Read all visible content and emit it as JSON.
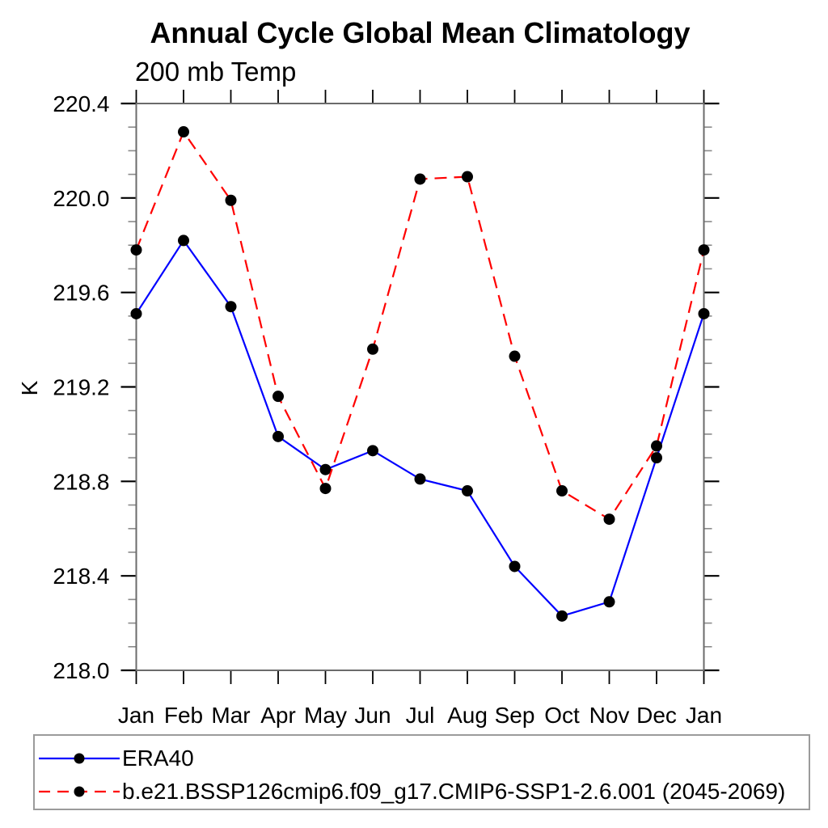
{
  "page": {
    "background": "#ffffff"
  },
  "chart_data": {
    "type": "line",
    "title": "Annual Cycle Global Mean Climatology",
    "subtitle": "200 mb Temp",
    "ylabel": "K",
    "xlabel": "",
    "categories": [
      "Jan",
      "Feb",
      "Mar",
      "Apr",
      "May",
      "Jun",
      "Jul",
      "Aug",
      "Sep",
      "Oct",
      "Nov",
      "Dec",
      "Jan"
    ],
    "ylim": [
      218.0,
      220.4
    ],
    "ytick_step": 0.4,
    "ytick_minor_step": 0.1,
    "ytick_labels": [
      "218.0",
      "218.4",
      "218.8",
      "219.2",
      "219.6",
      "220.0",
      "220.4"
    ],
    "grid": false,
    "legend_position": "bottom-left-box",
    "axis_color": "#6b6b6b",
    "tick_color": "#000000",
    "series": [
      {
        "name": "ERA40",
        "color": "#0000ff",
        "line_style": "solid",
        "marker": "filled-circle",
        "marker_color": "#000000",
        "values": [
          219.51,
          219.82,
          219.54,
          218.99,
          218.85,
          218.93,
          218.81,
          218.76,
          218.44,
          218.23,
          218.29,
          218.9,
          219.51
        ]
      },
      {
        "name": "b.e21.BSSP126cmip6.f09_g17.CMIP6-SSP1-2.6.001 (2045-2069)",
        "color": "#ff0000",
        "line_style": "dashed",
        "marker": "filled-circle",
        "marker_color": "#000000",
        "values": [
          219.78,
          220.28,
          219.99,
          219.16,
          218.77,
          219.36,
          220.08,
          220.09,
          219.33,
          218.76,
          218.64,
          218.95,
          219.78
        ]
      }
    ]
  }
}
